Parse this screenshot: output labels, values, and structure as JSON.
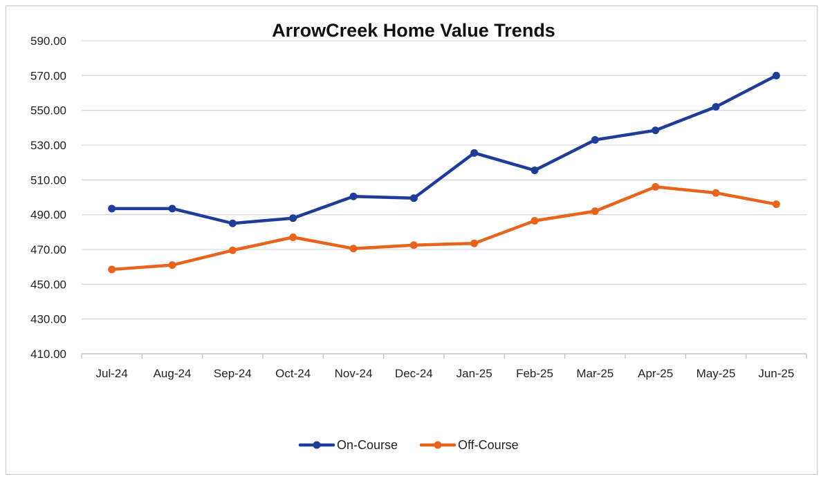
{
  "chart_data": {
    "type": "line",
    "title": "ArrowCreek Home Value Trends",
    "xlabel": "",
    "ylabel": "",
    "categories": [
      "Jul-24",
      "Aug-24",
      "Sep-24",
      "Oct-24",
      "Nov-24",
      "Dec-24",
      "Jan-25",
      "Feb-25",
      "Mar-25",
      "Apr-25",
      "May-25",
      "Jun-25"
    ],
    "ylim": [
      410,
      590
    ],
    "yticks": [
      "410.00",
      "430.00",
      "450.00",
      "470.00",
      "490.00",
      "510.00",
      "530.00",
      "550.00",
      "570.00",
      "590.00"
    ],
    "grid": true,
    "legend_position": "bottom",
    "series": [
      {
        "name": "On-Course",
        "color": "#1f3c99",
        "values": [
          493.5,
          493.5,
          485.0,
          488.0,
          500.5,
          499.5,
          525.5,
          515.5,
          533.0,
          538.5,
          552.0,
          570.0
        ]
      },
      {
        "name": "Off-Course",
        "color": "#e8641e",
        "values": [
          458.5,
          461.0,
          469.5,
          477.0,
          470.5,
          472.5,
          473.5,
          486.5,
          492.0,
          506.0,
          502.5,
          496.0
        ]
      }
    ]
  }
}
